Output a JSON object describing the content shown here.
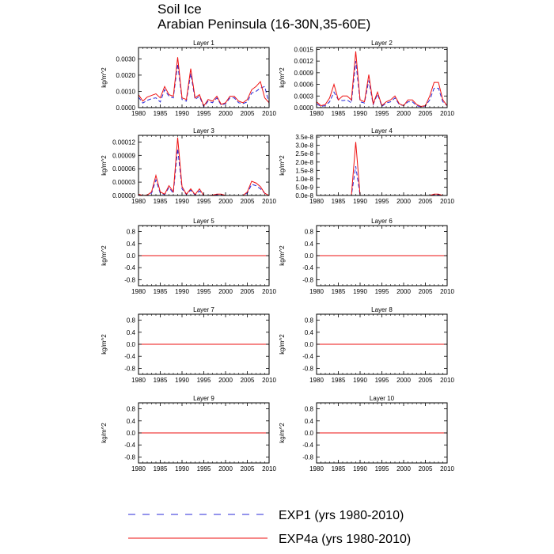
{
  "title": "Soil Ice",
  "subtitle": "Arabian Peninsula (16-30N,35-60E)",
  "colors": {
    "exp1": "#2a2ad8",
    "exp4a": "#ee1111"
  },
  "legend": [
    {
      "label": "EXP1 (yrs 1980-2010)",
      "style": "dashed",
      "color": "#2a2ad8"
    },
    {
      "label": "EXP4a (yrs 1980-2010)",
      "style": "solid",
      "color": "#ee1111"
    }
  ],
  "chart_data": [
    {
      "type": "line",
      "title": "Layer 1",
      "ylabel": "kg/m^2",
      "xlim": [
        1980,
        2010
      ],
      "xticks": [
        1980,
        1985,
        1990,
        1995,
        2000,
        2005,
        2010
      ],
      "ylim": [
        0,
        0.0037
      ],
      "yticks": [
        0,
        0.001,
        0.002,
        0.003
      ],
      "yticklabels": [
        "0.0000",
        "0.0010",
        "0.0020",
        "0.0030"
      ],
      "x": [
        1980,
        1981,
        1982,
        1983,
        1984,
        1985,
        1986,
        1987,
        1988,
        1989,
        1990,
        1991,
        1992,
        1993,
        1994,
        1995,
        1996,
        1997,
        1998,
        1999,
        2000,
        2001,
        2002,
        2003,
        2004,
        2005,
        2006,
        2007,
        2008,
        2009,
        2010
      ],
      "series": [
        {
          "name": "EXP1 (yrs 1980-2010)",
          "values": [
            0.00065,
            0.00028,
            0.00045,
            0.00055,
            0.0006,
            0.00035,
            0.0011,
            0.0007,
            0.0006,
            0.0027,
            0.0005,
            0.0004,
            0.0021,
            0.0005,
            0.0007,
            5e-05,
            0.0004,
            0.0003,
            0.0006,
            0.00015,
            0.00025,
            0.0006,
            0.0006,
            0.0003,
            0.00025,
            0.00035,
            0.0009,
            0.001,
            0.0012,
            0.0013,
            0.00025
          ]
        },
        {
          "name": "EXP4a (yrs 1980-2010)",
          "values": [
            0.0008,
            0.0004,
            0.00065,
            0.00075,
            0.00085,
            0.0006,
            0.0013,
            0.0008,
            0.0007,
            0.0031,
            0.0006,
            0.0005,
            0.0024,
            0.0006,
            0.0008,
            0.0001,
            0.0005,
            0.0004,
            0.0007,
            0.0002,
            0.0003,
            0.0007,
            0.0007,
            0.0004,
            0.0003,
            0.0005,
            0.0011,
            0.0013,
            0.0016,
            0.0006,
            0.0003
          ]
        }
      ]
    },
    {
      "type": "line",
      "title": "Layer 2",
      "ylabel": "kg/m^2",
      "xlim": [
        1980,
        2010
      ],
      "xticks": [
        1980,
        1985,
        1990,
        1995,
        2000,
        2005,
        2010
      ],
      "ylim": [
        0,
        0.00155
      ],
      "yticks": [
        0,
        0.0003,
        0.0006,
        0.0009,
        0.0012,
        0.0015
      ],
      "yticklabels": [
        "0.0000",
        "0.0003",
        "0.0006",
        "0.0009",
        "0.0012",
        "0.0015"
      ],
      "x": [
        1980,
        1981,
        1982,
        1983,
        1984,
        1985,
        1986,
        1987,
        1988,
        1989,
        1990,
        1991,
        1992,
        1993,
        1994,
        1995,
        1996,
        1997,
        1998,
        1999,
        2000,
        2001,
        2002,
        2003,
        2004,
        2005,
        2006,
        2007,
        2008,
        2009,
        2010
      ],
      "series": [
        {
          "name": "EXP1 (yrs 1980-2010)",
          "values": [
            0.0001,
            3e-05,
            5e-05,
            0.00015,
            0.0004,
            0.0002,
            0.00018,
            0.0002,
            0.00012,
            0.0012,
            0.00015,
            0.00012,
            0.0007,
            8e-05,
            0.00035,
            3e-05,
            0.00012,
            0.00015,
            0.00025,
            8e-05,
            5e-05,
            0.00015,
            0.00015,
            5e-05,
            2e-05,
            4e-05,
            0.0002,
            0.0005,
            0.0005,
            0.00015,
            5e-05
          ]
        },
        {
          "name": "EXP4a (yrs 1980-2010)",
          "values": [
            0.00015,
            5e-05,
            8e-05,
            0.00025,
            0.0006,
            0.0002,
            0.0003,
            0.0003,
            0.0002,
            0.00145,
            0.0002,
            0.00015,
            0.00085,
            0.0001,
            0.0004,
            5e-05,
            0.00015,
            0.0002,
            0.0003,
            0.0001,
            5e-05,
            0.0002,
            0.0002,
            8e-05,
            3e-05,
            5e-05,
            0.0003,
            0.00065,
            0.00065,
            0.0002,
            5e-05
          ]
        }
      ]
    },
    {
      "type": "line",
      "title": "Layer 3",
      "ylabel": "kg/m^2",
      "xlim": [
        1980,
        2010
      ],
      "xticks": [
        1980,
        1985,
        1990,
        1995,
        2000,
        2005,
        2010
      ],
      "ylim": [
        0,
        0.000135
      ],
      "yticks": [
        0,
        3e-05,
        6e-05,
        9e-05,
        0.00012
      ],
      "yticklabels": [
        "0.00000",
        "0.00003",
        "0.00006",
        "0.00009",
        "0.00012"
      ],
      "x": [
        1980,
        1981,
        1982,
        1983,
        1984,
        1985,
        1986,
        1987,
        1988,
        1989,
        1990,
        1991,
        1992,
        1993,
        1994,
        1995,
        1996,
        1997,
        1998,
        1999,
        2000,
        2001,
        2002,
        2003,
        2004,
        2005,
        2006,
        2007,
        2008,
        2009,
        2010
      ],
      "series": [
        {
          "name": "EXP1 (yrs 1980-2010)",
          "values": [
            2e-06,
            0,
            0,
            5e-06,
            3.5e-05,
            5e-06,
            2e-06,
            1.8e-05,
            5e-06,
            0.000105,
            1.5e-05,
            2e-06,
            1.2e-05,
            1e-06,
            1e-05,
            0,
            0,
            0,
            2e-06,
            2e-06,
            0,
            0,
            0,
            0,
            0,
            5e-06,
            2.5e-05,
            2.2e-05,
            1.5e-05,
            5e-06,
            0
          ]
        },
        {
          "name": "EXP4a (yrs 1980-2010)",
          "values": [
            3e-06,
            0,
            1e-06,
            8e-06,
            4.5e-05,
            8e-06,
            3e-06,
            2.2e-05,
            8e-06,
            0.00013,
            2e-05,
            3e-06,
            1.5e-05,
            2e-06,
            1.5e-05,
            0,
            0,
            1e-06,
            3e-06,
            3e-06,
            0,
            0,
            0,
            0,
            0,
            8e-06,
            3.2e-05,
            2.8e-05,
            2e-05,
            5e-06,
            0
          ]
        }
      ]
    },
    {
      "type": "line",
      "title": "Layer 4",
      "ylabel": "kg/m^2",
      "xlim": [
        1980,
        2010
      ],
      "xticks": [
        1980,
        1985,
        1990,
        1995,
        2000,
        2005,
        2010
      ],
      "ylim": [
        0,
        3.6e-08
      ],
      "yticks": [
        0,
        5e-09,
        1e-08,
        1.5e-08,
        2e-08,
        2.5e-08,
        3e-08,
        3.5e-08
      ],
      "yticklabels": [
        "0.0e-8",
        "5.0e-9",
        "1.0e-8",
        "1.5e-8",
        "2.0e-8",
        "2.5e-8",
        "3.0e-8",
        "3.5e-8"
      ],
      "x": [
        1980,
        1981,
        1982,
        1983,
        1984,
        1985,
        1986,
        1987,
        1988,
        1989,
        1990,
        1991,
        1992,
        1993,
        1994,
        1995,
        1996,
        1997,
        1998,
        1999,
        2000,
        2001,
        2002,
        2003,
        2004,
        2005,
        2006,
        2007,
        2008,
        2009,
        2010
      ],
      "series": [
        {
          "name": "EXP1 (yrs 1980-2010)",
          "values": [
            0,
            0,
            0,
            0,
            0,
            0,
            0,
            0,
            0,
            1.75e-08,
            0,
            0,
            0,
            0,
            0,
            0,
            0,
            0,
            0,
            0,
            0,
            0,
            0,
            0,
            0,
            0,
            0,
            5e-10,
            5e-10,
            0,
            0
          ]
        },
        {
          "name": "EXP4a (yrs 1980-2010)",
          "values": [
            0,
            0,
            0,
            0,
            0,
            0,
            0,
            0,
            0,
            3.2e-08,
            0,
            0,
            0,
            0,
            0,
            0,
            0,
            0,
            0,
            0,
            0,
            0,
            0,
            0,
            0,
            0,
            0,
            8e-10,
            8e-10,
            0,
            0
          ]
        }
      ]
    },
    {
      "type": "line",
      "title": "Layer 5",
      "ylabel": "kg/m^2",
      "xlim": [
        1980,
        2010
      ],
      "xticks": [
        1980,
        1985,
        1990,
        1995,
        2000,
        2005,
        2010
      ],
      "ylim": [
        -1,
        1
      ],
      "yticks": [
        -0.8,
        -0.4,
        0,
        0.4,
        0.8
      ],
      "yticklabels": [
        "-0.8",
        "-0.4",
        "0.0",
        "0.4",
        "0.8"
      ],
      "x": [
        1980,
        2010
      ],
      "series": [
        {
          "name": "EXP1 (yrs 1980-2010)",
          "values": [
            0,
            0
          ]
        },
        {
          "name": "EXP4a (yrs 1980-2010)",
          "values": [
            0,
            0
          ]
        }
      ]
    },
    {
      "type": "line",
      "title": "Layer 6",
      "ylabel": "kg/m^2",
      "xlim": [
        1980,
        2010
      ],
      "xticks": [
        1980,
        1985,
        1990,
        1995,
        2000,
        2005,
        2010
      ],
      "ylim": [
        -1,
        1
      ],
      "yticks": [
        -0.8,
        -0.4,
        0,
        0.4,
        0.8
      ],
      "yticklabels": [
        "-0.8",
        "-0.4",
        "0.0",
        "0.4",
        "0.8"
      ],
      "x": [
        1980,
        2010
      ],
      "series": [
        {
          "name": "EXP1 (yrs 1980-2010)",
          "values": [
            0,
            0
          ]
        },
        {
          "name": "EXP4a (yrs 1980-2010)",
          "values": [
            0,
            0
          ]
        }
      ]
    },
    {
      "type": "line",
      "title": "Layer 7",
      "ylabel": "kg/m^2",
      "xlim": [
        1980,
        2010
      ],
      "xticks": [
        1980,
        1985,
        1990,
        1995,
        2000,
        2005,
        2010
      ],
      "ylim": [
        -1,
        1
      ],
      "yticks": [
        -0.8,
        -0.4,
        0,
        0.4,
        0.8
      ],
      "yticklabels": [
        "-0.8",
        "-0.4",
        "0.0",
        "0.4",
        "0.8"
      ],
      "x": [
        1980,
        2010
      ],
      "series": [
        {
          "name": "EXP1 (yrs 1980-2010)",
          "values": [
            0,
            0
          ]
        },
        {
          "name": "EXP4a (yrs 1980-2010)",
          "values": [
            0,
            0
          ]
        }
      ]
    },
    {
      "type": "line",
      "title": "Layer 8",
      "ylabel": "kg/m^2",
      "xlim": [
        1980,
        2010
      ],
      "xticks": [
        1980,
        1985,
        1990,
        1995,
        2000,
        2005,
        2010
      ],
      "ylim": [
        -1,
        1
      ],
      "yticks": [
        -0.8,
        -0.4,
        0,
        0.4,
        0.8
      ],
      "yticklabels": [
        "-0.8",
        "-0.4",
        "0.0",
        "0.4",
        "0.8"
      ],
      "x": [
        1980,
        2010
      ],
      "series": [
        {
          "name": "EXP1 (yrs 1980-2010)",
          "values": [
            0,
            0
          ]
        },
        {
          "name": "EXP4a (yrs 1980-2010)",
          "values": [
            0,
            0
          ]
        }
      ]
    },
    {
      "type": "line",
      "title": "Layer 9",
      "ylabel": "kg/m^2",
      "xlim": [
        1980,
        2010
      ],
      "xticks": [
        1980,
        1985,
        1990,
        1995,
        2000,
        2005,
        2010
      ],
      "ylim": [
        -1,
        1
      ],
      "yticks": [
        -0.8,
        -0.4,
        0,
        0.4,
        0.8
      ],
      "yticklabels": [
        "-0.8",
        "-0.4",
        "0.0",
        "0.4",
        "0.8"
      ],
      "x": [
        1980,
        2010
      ],
      "series": [
        {
          "name": "EXP1 (yrs 1980-2010)",
          "values": [
            0,
            0
          ]
        },
        {
          "name": "EXP4a (yrs 1980-2010)",
          "values": [
            0,
            0
          ]
        }
      ]
    },
    {
      "type": "line",
      "title": "Layer 10",
      "ylabel": "kg/m^2",
      "xlim": [
        1980,
        2010
      ],
      "xticks": [
        1980,
        1985,
        1990,
        1995,
        2000,
        2005,
        2010
      ],
      "ylim": [
        -1,
        1
      ],
      "yticks": [
        -0.8,
        -0.4,
        0,
        0.4,
        0.8
      ],
      "yticklabels": [
        "-0.8",
        "-0.4",
        "0.0",
        "0.4",
        "0.8"
      ],
      "x": [
        1980,
        2010
      ],
      "series": [
        {
          "name": "EXP1 (yrs 1980-2010)",
          "values": [
            0,
            0
          ]
        },
        {
          "name": "EXP4a (yrs 1980-2010)",
          "values": [
            0,
            0
          ]
        }
      ]
    }
  ]
}
